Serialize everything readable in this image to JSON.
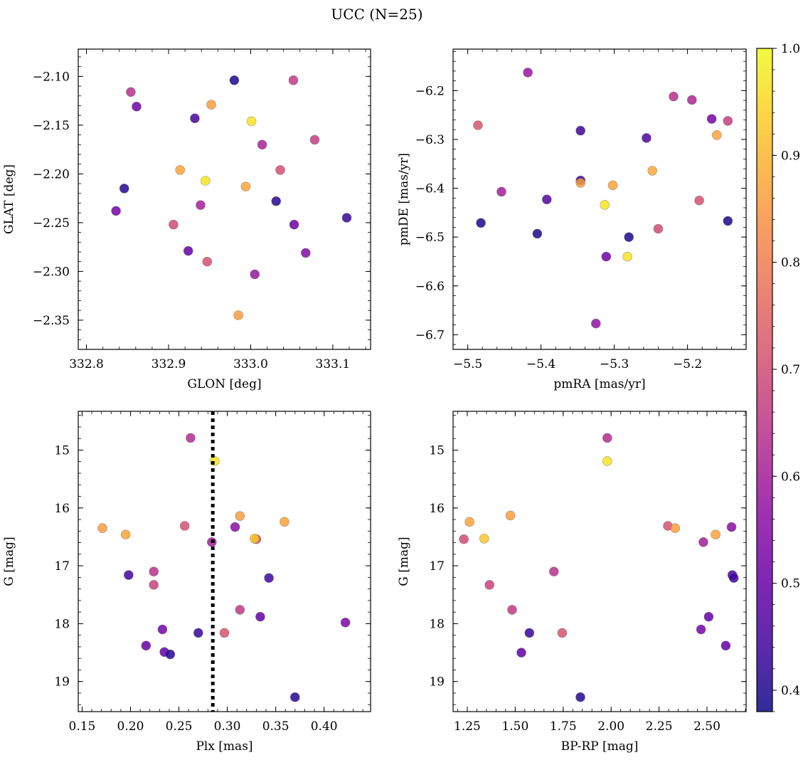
{
  "suptitle": "UCC (N=25)",
  "colorbar": {
    "colormap": "plasma",
    "range": [
      0.38,
      1.0
    ],
    "ticks": [
      0.4,
      0.5,
      0.6,
      0.7,
      0.8,
      0.9,
      1.0
    ],
    "tick_labels": [
      "0.4",
      "0.5",
      "0.6",
      "0.7",
      "0.8",
      "0.9",
      "1.0"
    ]
  },
  "chart_data": [
    {
      "type": "scatter",
      "xlabel": "GLON [deg]",
      "ylabel": "GLAT [deg]",
      "xlim": [
        332.79,
        333.146
      ],
      "ylim": [
        -2.38,
        -2.072
      ],
      "y_inverted": false,
      "xticks": [
        332.8,
        332.9,
        333.0,
        333.1
      ],
      "xtick_labels": [
        "332.8",
        "332.9",
        "333.0",
        "333.1"
      ],
      "yticks": [
        -2.35,
        -2.3,
        -2.25,
        -2.2,
        -2.15,
        -2.1
      ],
      "ytick_labels": [
        "−2.35",
        "−2.30",
        "−2.25",
        "−2.20",
        "−2.15",
        "−2.10"
      ],
      "vline": null,
      "points": [
        {
          "x": 332.854,
          "y": -2.116,
          "c": 0.64
        },
        {
          "x": 332.861,
          "y": -2.131,
          "c": 0.51
        },
        {
          "x": 332.98,
          "y": -2.104,
          "c": 0.4
        },
        {
          "x": 333.052,
          "y": -2.104,
          "c": 0.66
        },
        {
          "x": 332.952,
          "y": -2.129,
          "c": 0.86
        },
        {
          "x": 332.932,
          "y": -2.143,
          "c": 0.45
        },
        {
          "x": 333.001,
          "y": -2.146,
          "c": 0.97
        },
        {
          "x": 333.078,
          "y": -2.165,
          "c": 0.67
        },
        {
          "x": 333.014,
          "y": -2.17,
          "c": 0.61
        },
        {
          "x": 332.914,
          "y": -2.196,
          "c": 0.87
        },
        {
          "x": 333.036,
          "y": -2.196,
          "c": 0.71
        },
        {
          "x": 332.945,
          "y": -2.207,
          "c": 0.97
        },
        {
          "x": 332.846,
          "y": -2.215,
          "c": 0.41
        },
        {
          "x": 332.994,
          "y": -2.213,
          "c": 0.87
        },
        {
          "x": 332.836,
          "y": -2.238,
          "c": 0.52
        },
        {
          "x": 333.031,
          "y": -2.228,
          "c": 0.41
        },
        {
          "x": 332.939,
          "y": -2.232,
          "c": 0.6
        },
        {
          "x": 333.117,
          "y": -2.245,
          "c": 0.43
        },
        {
          "x": 332.906,
          "y": -2.252,
          "c": 0.7
        },
        {
          "x": 333.053,
          "y": -2.252,
          "c": 0.51
        },
        {
          "x": 332.924,
          "y": -2.279,
          "c": 0.5
        },
        {
          "x": 333.067,
          "y": -2.281,
          "c": 0.55
        },
        {
          "x": 332.947,
          "y": -2.29,
          "c": 0.71
        },
        {
          "x": 333.005,
          "y": -2.303,
          "c": 0.58
        },
        {
          "x": 332.985,
          "y": -2.345,
          "c": 0.86
        }
      ]
    },
    {
      "type": "scatter",
      "xlabel": "pmRA [mas/yr]",
      "ylabel": "pmDE [mas/yr]",
      "xlim": [
        -5.52,
        -5.12
      ],
      "ylim": [
        -6.73,
        -6.115
      ],
      "y_inverted": false,
      "xticks": [
        -5.5,
        -5.4,
        -5.3,
        -5.2
      ],
      "xtick_labels": [
        "−5.5",
        "−5.4",
        "−5.3",
        "−5.2"
      ],
      "yticks": [
        -6.7,
        -6.6,
        -6.5,
        -6.4,
        -6.3,
        -6.2
      ],
      "ytick_labels": [
        "−6.7",
        "−6.6",
        "−6.5",
        "−6.4",
        "−6.3",
        "−6.2"
      ],
      "vline": null,
      "points": [
        {
          "x": -5.418,
          "y": -6.163,
          "c": 0.58
        },
        {
          "x": -5.219,
          "y": -6.212,
          "c": 0.64
        },
        {
          "x": -5.194,
          "y": -6.219,
          "c": 0.62
        },
        {
          "x": -5.167,
          "y": -6.258,
          "c": 0.52
        },
        {
          "x": -5.145,
          "y": -6.262,
          "c": 0.67
        },
        {
          "x": -5.486,
          "y": -6.271,
          "c": 0.72
        },
        {
          "x": -5.346,
          "y": -6.282,
          "c": 0.44
        },
        {
          "x": -5.16,
          "y": -6.291,
          "c": 0.87
        },
        {
          "x": -5.256,
          "y": -6.297,
          "c": 0.46
        },
        {
          "x": -5.248,
          "y": -6.364,
          "c": 0.88
        },
        {
          "x": -5.346,
          "y": -6.384,
          "c": 0.43
        },
        {
          "x": -5.346,
          "y": -6.389,
          "c": 0.86
        },
        {
          "x": -5.302,
          "y": -6.394,
          "c": 0.87
        },
        {
          "x": -5.454,
          "y": -6.407,
          "c": 0.6
        },
        {
          "x": -5.392,
          "y": -6.423,
          "c": 0.47
        },
        {
          "x": -5.184,
          "y": -6.425,
          "c": 0.71
        },
        {
          "x": -5.313,
          "y": -6.434,
          "c": 0.97
        },
        {
          "x": -5.482,
          "y": -6.471,
          "c": 0.4
        },
        {
          "x": -5.145,
          "y": -6.467,
          "c": 0.4
        },
        {
          "x": -5.24,
          "y": -6.483,
          "c": 0.7
        },
        {
          "x": -5.405,
          "y": -6.493,
          "c": 0.4
        },
        {
          "x": -5.28,
          "y": -6.5,
          "c": 0.4
        },
        {
          "x": -5.311,
          "y": -6.54,
          "c": 0.51
        },
        {
          "x": -5.282,
          "y": -6.54,
          "c": 0.97
        },
        {
          "x": -5.325,
          "y": -6.677,
          "c": 0.57
        }
      ]
    },
    {
      "type": "scatter",
      "xlabel": "Plx [mas]",
      "ylabel": "G [mag]",
      "xlim": [
        0.146,
        0.448
      ],
      "ylim": [
        19.52,
        14.33
      ],
      "y_inverted": true,
      "xticks": [
        0.15,
        0.2,
        0.25,
        0.3,
        0.35,
        0.4
      ],
      "xtick_labels": [
        "0.15",
        "0.20",
        "0.25",
        "0.30",
        "0.35",
        "0.40"
      ],
      "yticks": [
        15,
        16,
        17,
        18,
        19
      ],
      "ytick_labels": [
        "15",
        "16",
        "17",
        "18",
        "19"
      ],
      "vline": 0.285,
      "points": [
        {
          "x": 0.262,
          "y": 14.79,
          "c": 0.63
        },
        {
          "x": 0.287,
          "y": 15.19,
          "c": 0.97
        },
        {
          "x": 0.313,
          "y": 16.14,
          "c": 0.86
        },
        {
          "x": 0.359,
          "y": 16.24,
          "c": 0.87
        },
        {
          "x": 0.256,
          "y": 16.31,
          "c": 0.71
        },
        {
          "x": 0.308,
          "y": 16.33,
          "c": 0.56
        },
        {
          "x": 0.171,
          "y": 16.35,
          "c": 0.86
        },
        {
          "x": 0.195,
          "y": 16.46,
          "c": 0.87
        },
        {
          "x": 0.33,
          "y": 16.54,
          "c": 0.7
        },
        {
          "x": 0.328,
          "y": 16.53,
          "c": 0.93
        },
        {
          "x": 0.284,
          "y": 16.59,
          "c": 0.6
        },
        {
          "x": 0.224,
          "y": 17.1,
          "c": 0.64
        },
        {
          "x": 0.198,
          "y": 17.16,
          "c": 0.45
        },
        {
          "x": 0.343,
          "y": 17.21,
          "c": 0.44
        },
        {
          "x": 0.224,
          "y": 17.33,
          "c": 0.68
        },
        {
          "x": 0.313,
          "y": 17.76,
          "c": 0.66
        },
        {
          "x": 0.334,
          "y": 17.88,
          "c": 0.49
        },
        {
          "x": 0.422,
          "y": 17.98,
          "c": 0.53
        },
        {
          "x": 0.233,
          "y": 18.1,
          "c": 0.52
        },
        {
          "x": 0.27,
          "y": 18.16,
          "c": 0.43
        },
        {
          "x": 0.297,
          "y": 18.16,
          "c": 0.72
        },
        {
          "x": 0.216,
          "y": 18.38,
          "c": 0.5
        },
        {
          "x": 0.235,
          "y": 18.49,
          "c": 0.5
        },
        {
          "x": 0.241,
          "y": 18.53,
          "c": 0.41
        },
        {
          "x": 0.37,
          "y": 19.27,
          "c": 0.41
        }
      ]
    },
    {
      "type": "scatter",
      "xlabel": "BP-RP [mag]",
      "ylabel": "G [mag]",
      "xlim": [
        1.176,
        2.704
      ],
      "ylim": [
        19.52,
        14.33
      ],
      "y_inverted": true,
      "xticks": [
        1.25,
        1.5,
        1.75,
        2.0,
        2.25,
        2.5
      ],
      "xtick_labels": [
        "1.25",
        "1.50",
        "1.75",
        "2.00",
        "2.25",
        "2.50"
      ],
      "yticks": [
        15,
        16,
        17,
        18,
        19
      ],
      "ytick_labels": [
        "15",
        "16",
        "17",
        "18",
        "19"
      ],
      "vline": null,
      "points": [
        {
          "x": 1.98,
          "y": 14.79,
          "c": 0.63
        },
        {
          "x": 1.98,
          "y": 15.19,
          "c": 0.97
        },
        {
          "x": 1.475,
          "y": 16.13,
          "c": 0.86
        },
        {
          "x": 1.262,
          "y": 16.24,
          "c": 0.87
        },
        {
          "x": 2.296,
          "y": 16.31,
          "c": 0.71
        },
        {
          "x": 2.334,
          "y": 16.35,
          "c": 0.86
        },
        {
          "x": 2.628,
          "y": 16.33,
          "c": 0.56
        },
        {
          "x": 2.545,
          "y": 16.46,
          "c": 0.87
        },
        {
          "x": 1.232,
          "y": 16.54,
          "c": 0.7
        },
        {
          "x": 1.338,
          "y": 16.53,
          "c": 0.93
        },
        {
          "x": 2.481,
          "y": 16.59,
          "c": 0.6
        },
        {
          "x": 1.702,
          "y": 17.1,
          "c": 0.64
        },
        {
          "x": 2.632,
          "y": 17.16,
          "c": 0.45
        },
        {
          "x": 2.64,
          "y": 17.21,
          "c": 0.44
        },
        {
          "x": 1.366,
          "y": 17.33,
          "c": 0.68
        },
        {
          "x": 1.484,
          "y": 17.76,
          "c": 0.66
        },
        {
          "x": 2.509,
          "y": 17.88,
          "c": 0.49
        },
        {
          "x": 2.469,
          "y": 18.1,
          "c": 0.52
        },
        {
          "x": 1.574,
          "y": 18.16,
          "c": 0.43
        },
        {
          "x": 1.745,
          "y": 18.16,
          "c": 0.72
        },
        {
          "x": 2.598,
          "y": 18.38,
          "c": 0.5
        },
        {
          "x": 1.532,
          "y": 18.5,
          "c": 0.49
        },
        {
          "x": 1.84,
          "y": 19.27,
          "c": 0.41
        }
      ]
    }
  ]
}
